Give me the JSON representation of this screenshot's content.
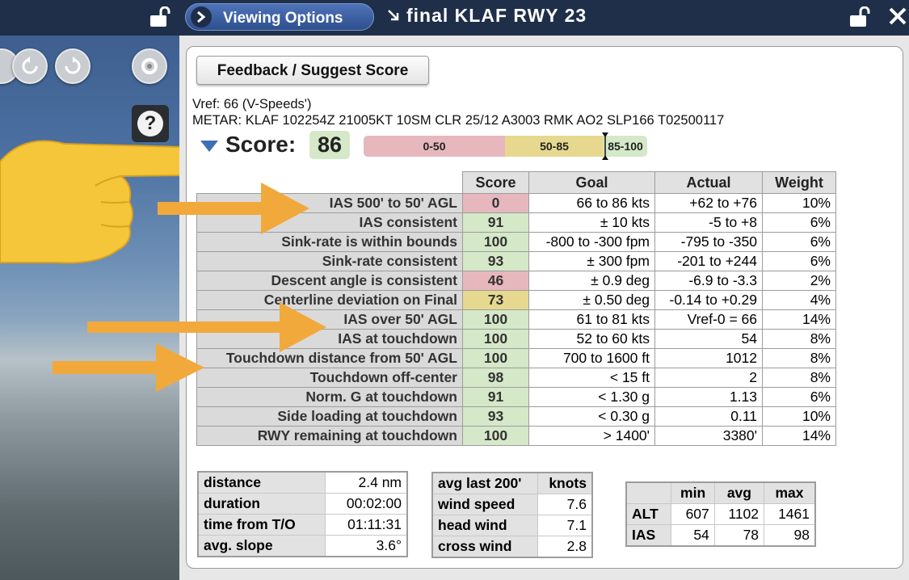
{
  "header": {
    "viewing_options": "Viewing Options",
    "window_title": "final KLAF RWY 23"
  },
  "feedback_button": "Feedback / Suggest Score",
  "info": {
    "vref": "Vref: 66 (V-Speeds')",
    "metar": "METAR: KLAF 102254Z 21005KT 10SM CLR 25/12 A3003 RMK AO2 SLP166 T02500117"
  },
  "score": {
    "label": "Score:",
    "value": "86",
    "bands": [
      "0-50",
      "50-85",
      "85-100"
    ]
  },
  "help": {
    "label": "?"
  },
  "score_table": {
    "headers": [
      "Score",
      "Goal",
      "Actual",
      "Weight"
    ],
    "rows": [
      {
        "label": "IAS 500' to 50' AGL",
        "score": "0",
        "goal": "66 to 86 kts",
        "actual": "+62 to +76",
        "weight": "10%"
      },
      {
        "label": "IAS consistent",
        "score": "91",
        "goal": "± 10 kts",
        "actual": "-5 to +8",
        "weight": "6%"
      },
      {
        "label": "Sink-rate is within bounds",
        "score": "100",
        "goal": "-800 to -300 fpm",
        "actual": "-795 to -350",
        "weight": "6%"
      },
      {
        "label": "Sink-rate consistent",
        "score": "93",
        "goal": "± 300 fpm",
        "actual": "-201 to +244",
        "weight": "6%"
      },
      {
        "label": "Descent angle is consistent",
        "score": "46",
        "goal": "± 0.9 deg",
        "actual": "-6.9 to -3.3",
        "weight": "2%"
      },
      {
        "label": "Centerline deviation on Final",
        "score": "73",
        "goal": "± 0.50 deg",
        "actual": "-0.14 to +0.29",
        "weight": "4%"
      },
      {
        "label": "IAS over 50' AGL",
        "score": "100",
        "goal": "61 to 81 kts",
        "actual": "Vref-0 = 66",
        "weight": "14%"
      },
      {
        "label": "IAS at touchdown",
        "score": "100",
        "goal": "52 to 60 kts",
        "actual": "54",
        "weight": "8%"
      },
      {
        "label": "Touchdown distance from 50' AGL",
        "score": "100",
        "goal": "700 to 1600 ft",
        "actual": "1012",
        "weight": "8%"
      },
      {
        "label": "Touchdown off-center",
        "score": "98",
        "goal": "< 15 ft",
        "actual": "2",
        "weight": "8%"
      },
      {
        "label": "Norm. G at touchdown",
        "score": "91",
        "goal": "< 1.30 g",
        "actual": "1.13",
        "weight": "6%"
      },
      {
        "label": "Side loading at touchdown",
        "score": "93",
        "goal": "< 0.30 g",
        "actual": "0.11",
        "weight": "10%"
      },
      {
        "label": "RWY remaining at touchdown",
        "score": "100",
        "goal": "> 1400'",
        "actual": "3380'",
        "weight": "14%"
      }
    ]
  },
  "flight_stats": [
    {
      "label": "distance",
      "value": "2.4 nm"
    },
    {
      "label": "duration",
      "value": "00:02:00"
    },
    {
      "label": "time from T/O",
      "value": "01:11:31"
    },
    {
      "label": "avg. slope",
      "value": "3.6°"
    }
  ],
  "wind_table": {
    "header_label": "avg last 200'",
    "header_unit": "knots",
    "rows": [
      {
        "label": "wind speed",
        "value": "7.6"
      },
      {
        "label": "head wind",
        "value": "7.1"
      },
      {
        "label": "cross wind",
        "value": "2.8"
      }
    ]
  },
  "alt_ias_table": {
    "headers": [
      "min",
      "avg",
      "max"
    ],
    "rows": [
      {
        "label": "ALT",
        "values": [
          "607",
          "1102",
          "1461"
        ]
      },
      {
        "label": "IAS",
        "values": [
          "54",
          "78",
          "98"
        ]
      }
    ]
  },
  "colors": {
    "red": "#e6b8bd",
    "yellow": "#e6d98f",
    "green": "#d5e8c8",
    "arrow": "#f2a93b",
    "title_bar": "#1f2f4a"
  }
}
